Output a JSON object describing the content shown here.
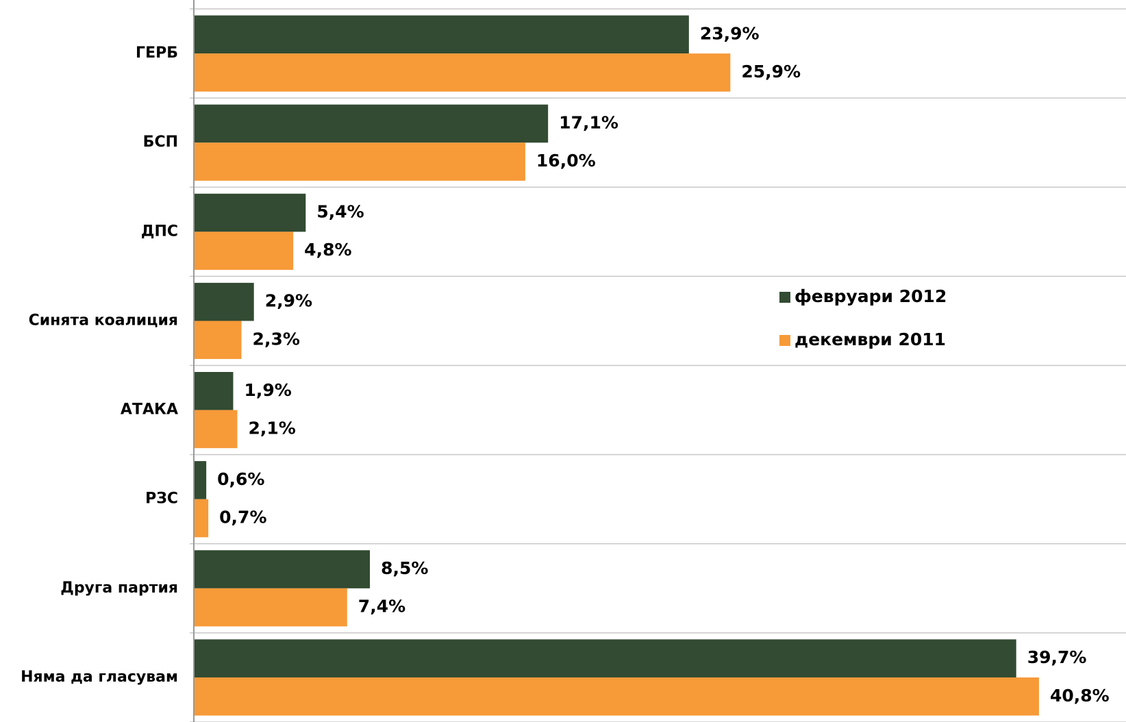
{
  "chart_data": {
    "type": "bar",
    "orientation": "horizontal",
    "categories": [
      "ГЕРБ",
      "БСП",
      "ДПС",
      "Синята коалиция",
      "АТАКА",
      "РЗС",
      "Друга партия",
      "Няма да гласувам"
    ],
    "series": [
      {
        "name": "февруари 2012",
        "color": "#324b32",
        "values": [
          23.9,
          17.1,
          5.4,
          2.9,
          1.9,
          0.6,
          8.5,
          39.7
        ],
        "value_labels": [
          "23,9%",
          "17,1%",
          "5,4%",
          "2,9%",
          "1,9%",
          "0,6%",
          "8,5%",
          "39,7%"
        ]
      },
      {
        "name": "декември 2011",
        "color": "#f79a38",
        "values": [
          25.9,
          16.0,
          4.8,
          2.3,
          2.1,
          0.7,
          7.4,
          40.8
        ],
        "value_labels": [
          "25,9%",
          "16,0%",
          "4,8%",
          "2,3%",
          "2,1%",
          "0,7%",
          "7,4%",
          "40,8%"
        ]
      }
    ],
    "xlim": [
      0,
      45
    ]
  }
}
